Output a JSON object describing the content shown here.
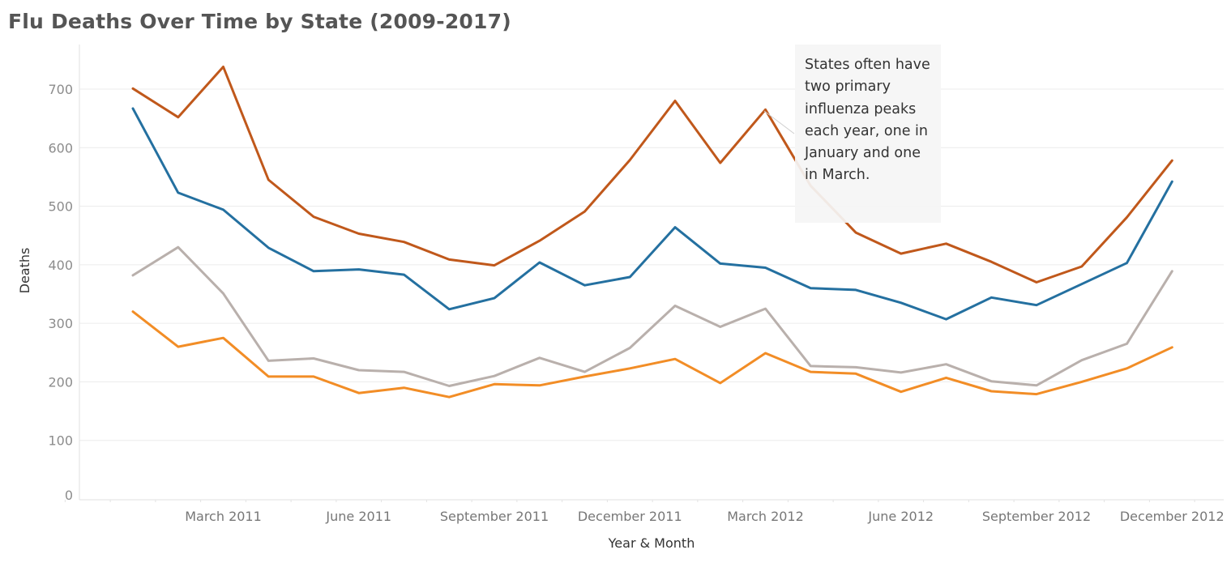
{
  "chart_data": {
    "type": "line",
    "title": "Flu Deaths Over Time by State (2009-2017)",
    "xlabel": "Year & Month",
    "ylabel": "Deaths",
    "ylim": [
      0,
      760
    ],
    "yticks": [
      0,
      100,
      200,
      300,
      400,
      500,
      600,
      700
    ],
    "grid": true,
    "x": [
      "January 2011",
      "February 2011",
      "March 2011",
      "April 2011",
      "May 2011",
      "June 2011",
      "July 2011",
      "August 2011",
      "September 2011",
      "October 2011",
      "November 2011",
      "December 2011",
      "January 2012",
      "February 2012",
      "March 2012",
      "April 2012",
      "May 2012",
      "June 2012",
      "July 2012",
      "August 2012",
      "September 2012",
      "October 2012",
      "November 2012",
      "December 2012"
    ],
    "xtick_labels": [
      "March 2011",
      "June 2011",
      "September 2011",
      "December 2011",
      "March 2012",
      "June 2012",
      "September 2012",
      "December 2012"
    ],
    "series": [
      {
        "color": "#c0581b",
        "values": [
          701,
          652,
          738,
          545,
          482,
          453,
          439,
          409,
          399,
          441,
          491,
          579,
          680,
          574,
          665,
          535,
          455,
          419,
          436,
          405,
          370,
          397,
          481,
          578
        ]
      },
      {
        "color": "#2470a0",
        "values": [
          667,
          523,
          494,
          429,
          389,
          392,
          383,
          324,
          343,
          404,
          365,
          379,
          464,
          402,
          395,
          360,
          357,
          335,
          307,
          344,
          331,
          367,
          403,
          542
        ]
      },
      {
        "color": "#b9b0ac",
        "values": [
          382,
          430,
          351,
          236,
          240,
          220,
          217,
          193,
          210,
          241,
          217,
          258,
          330,
          294,
          325,
          227,
          225,
          216,
          230,
          201,
          194,
          237,
          265,
          389
        ]
      },
      {
        "color": "#f28d26",
        "values": [
          320,
          260,
          275,
          209,
          209,
          181,
          190,
          174,
          196,
          194,
          209,
          223,
          239,
          198,
          249,
          217,
          214,
          183,
          207,
          184,
          179,
          200,
          223,
          259
        ]
      }
    ],
    "annotation": "States often have two primary influenza peaks each year, one in January and one in March."
  }
}
